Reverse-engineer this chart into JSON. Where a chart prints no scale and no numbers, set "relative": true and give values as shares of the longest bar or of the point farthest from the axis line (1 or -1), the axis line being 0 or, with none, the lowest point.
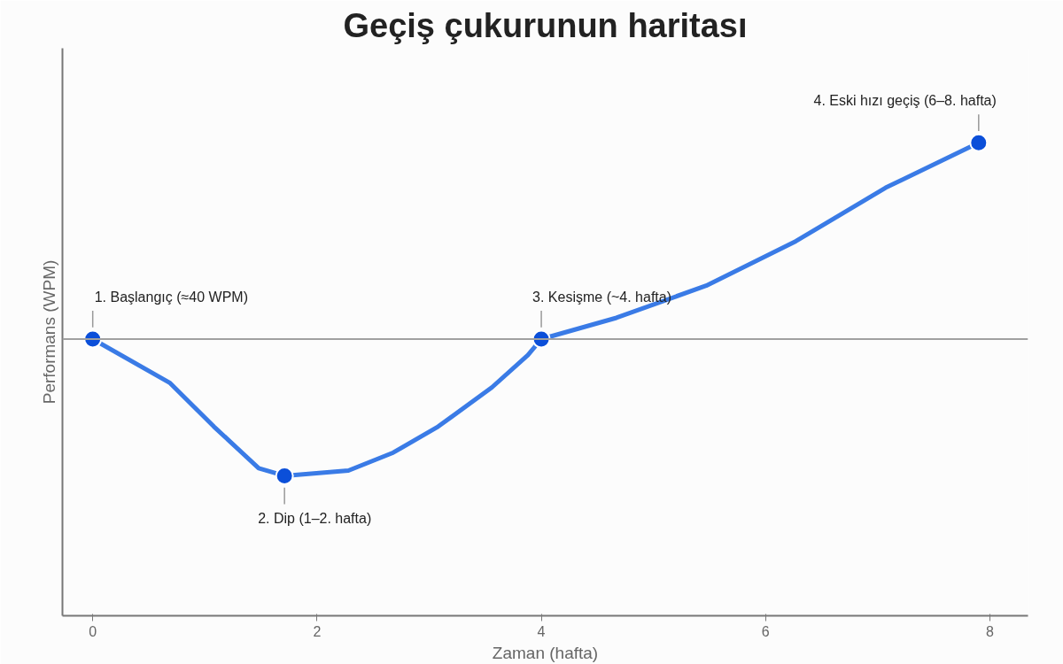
{
  "chart_data": {
    "type": "line",
    "title": "Geçiş çukurunun haritası",
    "xlabel": "Zaman (hafta)",
    "ylabel": "Performans (WPM)",
    "relative": true,
    "xlim": [
      -0.27,
      8.34
    ],
    "xticks": [
      0,
      2,
      4,
      6,
      8
    ],
    "grid": false,
    "series": [
      {
        "color": "#3a7be6",
        "marker": "none",
        "line_style": "solid",
        "x": [
          0,
          0.69,
          1.08,
          1.48,
          1.71,
          2.28,
          2.68,
          3.08,
          3.56,
          3.88,
          4,
          4.67,
          5.47,
          6.27,
          7.07,
          7.9
        ],
        "values": [
          0.585,
          0.492,
          0.4,
          0.312,
          0.296,
          0.307,
          0.345,
          0.4,
          0.483,
          0.551,
          0.585,
          0.63,
          0.698,
          0.792,
          0.905,
          1
        ]
      },
      {
        "type": "scatter",
        "color": "#0b4fd9",
        "marker": "circle",
        "x": [
          0,
          1.71,
          4,
          7.9
        ],
        "values": [
          0.585,
          0.296,
          0.585,
          1
        ]
      }
    ],
    "ref_lines": [
      {
        "axis": "y",
        "value": 0.585,
        "color": "#a0a0a0"
      }
    ],
    "annotations": [
      {
        "text": "1. Başlangıç (≈40 WPM)",
        "x": 0,
        "y": 0.585
      },
      {
        "text": "2. Dip (1–2. hafta)",
        "x": 1.71,
        "y": 0.296
      },
      {
        "text": "3. Kesişme (~4. hafta)",
        "x": 4,
        "y": 0.585
      },
      {
        "text": "4. Eski hızı geçiş (6–8. hafta)",
        "x": 7.9,
        "y": 1
      }
    ]
  }
}
